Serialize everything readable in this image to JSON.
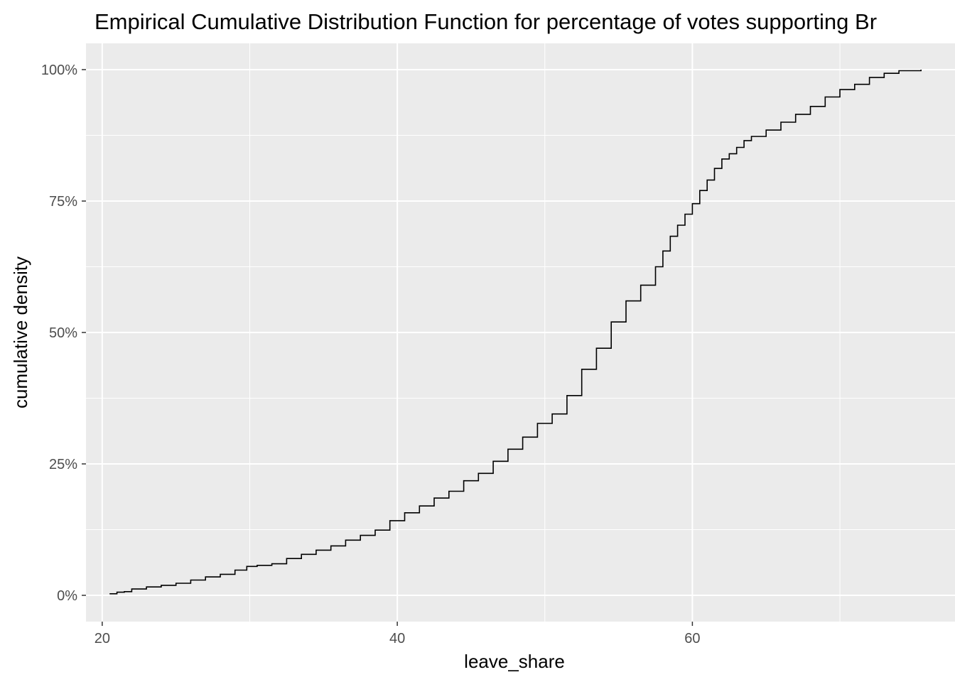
{
  "chart_data": {
    "type": "line",
    "title": "Empirical Cumulative Distribution Function for percentage of votes supporting Br",
    "xlabel": "leave_share",
    "ylabel": "cumulative density",
    "xlim": [
      18.9,
      77.8
    ],
    "ylim": [
      -0.05,
      1.05
    ],
    "x_ticks": [
      20,
      40,
      60
    ],
    "x_tick_labels": [
      "20",
      "40",
      "60"
    ],
    "y_ticks": [
      0,
      0.25,
      0.5,
      0.75,
      1.0
    ],
    "y_tick_labels": [
      "0%",
      "25%",
      "50%",
      "75%",
      "100%"
    ],
    "grid": true,
    "legend": "none",
    "series": [
      {
        "line_color": "#000000",
        "step": true,
        "points": [
          [
            20.5,
            0.003
          ],
          [
            21.0,
            0.006
          ],
          [
            21.5,
            0.007
          ],
          [
            22.0,
            0.012
          ],
          [
            23.0,
            0.016
          ],
          [
            24.0,
            0.019
          ],
          [
            25.0,
            0.023
          ],
          [
            26.0,
            0.029
          ],
          [
            27.0,
            0.035
          ],
          [
            28.0,
            0.04
          ],
          [
            29.0,
            0.048
          ],
          [
            29.8,
            0.055
          ],
          [
            30.5,
            0.057
          ],
          [
            31.5,
            0.06
          ],
          [
            32.5,
            0.07
          ],
          [
            33.5,
            0.078
          ],
          [
            34.5,
            0.086
          ],
          [
            35.5,
            0.094
          ],
          [
            36.5,
            0.105
          ],
          [
            37.5,
            0.114
          ],
          [
            38.5,
            0.124
          ],
          [
            39.5,
            0.142
          ],
          [
            40.5,
            0.157
          ],
          [
            41.5,
            0.17
          ],
          [
            42.5,
            0.185
          ],
          [
            43.5,
            0.198
          ],
          [
            44.5,
            0.218
          ],
          [
            45.5,
            0.232
          ],
          [
            46.5,
            0.255
          ],
          [
            47.5,
            0.278
          ],
          [
            48.5,
            0.301
          ],
          [
            49.5,
            0.327
          ],
          [
            50.5,
            0.345
          ],
          [
            51.5,
            0.38
          ],
          [
            52.5,
            0.43
          ],
          [
            53.5,
            0.47
          ],
          [
            54.5,
            0.52
          ],
          [
            55.5,
            0.56
          ],
          [
            56.5,
            0.59
          ],
          [
            57.5,
            0.625
          ],
          [
            58.0,
            0.655
          ],
          [
            58.5,
            0.683
          ],
          [
            59.0,
            0.704
          ],
          [
            59.5,
            0.725
          ],
          [
            60.0,
            0.745
          ],
          [
            60.5,
            0.77
          ],
          [
            61.0,
            0.79
          ],
          [
            61.5,
            0.812
          ],
          [
            62.0,
            0.83
          ],
          [
            62.5,
            0.84
          ],
          [
            63.0,
            0.852
          ],
          [
            63.5,
            0.865
          ],
          [
            64.0,
            0.873
          ],
          [
            65.0,
            0.885
          ],
          [
            66.0,
            0.9
          ],
          [
            67.0,
            0.915
          ],
          [
            68.0,
            0.93
          ],
          [
            69.0,
            0.948
          ],
          [
            70.0,
            0.962
          ],
          [
            71.0,
            0.972
          ],
          [
            72.0,
            0.985
          ],
          [
            73.0,
            0.993
          ],
          [
            74.0,
            0.998
          ],
          [
            75.5,
            1.0
          ]
        ]
      }
    ]
  }
}
